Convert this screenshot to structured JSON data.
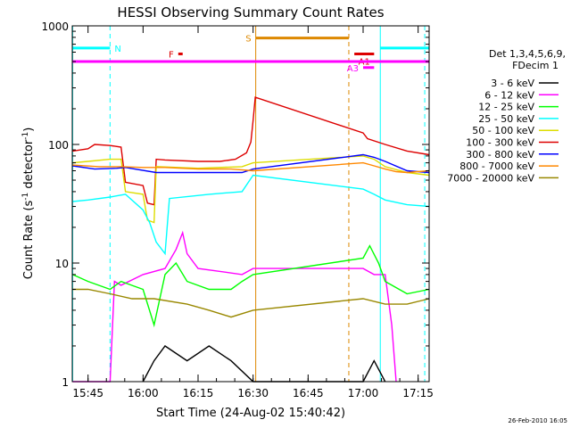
{
  "chart_data": {
    "type": "line",
    "title": "HESSI Observing Summary Count Rates",
    "xlabel": "Start Time (24-Aug-02 15:40:42)",
    "ylabel_main": "Count Rate (s",
    "ylabel_sup1": "-1",
    "ylabel_mid": " detector",
    "ylabel_sup2": "-1",
    "ylabel_end": ")",
    "xlim": [
      15.6783,
      17.3
    ],
    "ylim": [
      1,
      1000
    ],
    "yscale": "log",
    "x_ticks": [
      {
        "v": 15.75,
        "label": "15:45"
      },
      {
        "v": 16.0,
        "label": "16:00"
      },
      {
        "v": 16.25,
        "label": "16:15"
      },
      {
        "v": 16.5,
        "label": "16:30"
      },
      {
        "v": 16.75,
        "label": "16:45"
      },
      {
        "v": 17.0,
        "label": "17:00"
      },
      {
        "v": 17.25,
        "label": "17:15"
      }
    ],
    "y_ticks": [
      {
        "v": 1,
        "label": "1"
      },
      {
        "v": 10,
        "label": "10"
      },
      {
        "v": 100,
        "label": "100"
      },
      {
        "v": 1000,
        "label": "1000"
      }
    ],
    "legend": {
      "placement": "right",
      "header1": "Det 1,3,4,5,6,9,",
      "header2": "FDecim 1",
      "entries": [
        {
          "label": "3 - 6 keV",
          "color": "#000000"
        },
        {
          "label": "6 - 12 keV",
          "color": "#ff00ff"
        },
        {
          "label": "12 - 25 keV",
          "color": "#00ff00"
        },
        {
          "label": "25 - 50 keV",
          "color": "#00ffff"
        },
        {
          "label": "50 - 100 keV",
          "color": "#dddd00"
        },
        {
          "label": "100 - 300 keV",
          "color": "#dd0000"
        },
        {
          "label": "300 - 800 keV",
          "color": "#0000ff"
        },
        {
          "label": "800 - 7000 keV",
          "color": "#ff8800"
        },
        {
          "label": "7000 - 20000 keV",
          "color": "#998800"
        }
      ]
    },
    "series": [
      {
        "name": "100 - 300 keV",
        "color": "#dd0000",
        "points": [
          [
            15.68,
            88
          ],
          [
            15.75,
            92
          ],
          [
            15.78,
            100
          ],
          [
            15.85,
            98
          ],
          [
            15.9,
            95
          ],
          [
            15.92,
            48
          ],
          [
            16.0,
            45
          ],
          [
            16.02,
            32
          ],
          [
            16.05,
            31
          ],
          [
            16.06,
            75
          ],
          [
            16.1,
            74
          ],
          [
            16.25,
            72
          ],
          [
            16.35,
            72
          ],
          [
            16.42,
            75
          ],
          [
            16.47,
            85
          ],
          [
            16.49,
            105
          ],
          [
            16.5,
            160
          ],
          [
            16.51,
            250
          ],
          [
            17.0,
            125
          ],
          [
            17.02,
            112
          ],
          [
            17.1,
            100
          ],
          [
            17.2,
            88
          ],
          [
            17.3,
            82
          ]
        ]
      },
      {
        "name": "50 - 100 keV",
        "color": "#dddd00",
        "points": [
          [
            15.68,
            70
          ],
          [
            15.75,
            72
          ],
          [
            15.85,
            75
          ],
          [
            15.9,
            75
          ],
          [
            15.92,
            40
          ],
          [
            16.0,
            38
          ],
          [
            16.02,
            23
          ],
          [
            16.05,
            22
          ],
          [
            16.06,
            65
          ],
          [
            16.25,
            63
          ],
          [
            16.45,
            65
          ],
          [
            16.5,
            70
          ],
          [
            17.0,
            80
          ],
          [
            17.05,
            75
          ],
          [
            17.1,
            65
          ],
          [
            17.2,
            58
          ],
          [
            17.3,
            55
          ]
        ]
      },
      {
        "name": "300 - 800 keV",
        "color": "#0000ff",
        "points": [
          [
            15.68,
            66
          ],
          [
            15.78,
            62
          ],
          [
            15.88,
            63
          ],
          [
            15.92,
            64
          ],
          [
            16.06,
            58
          ],
          [
            16.25,
            58
          ],
          [
            16.45,
            58
          ],
          [
            16.5,
            62
          ],
          [
            17.0,
            82
          ],
          [
            17.05,
            78
          ],
          [
            17.1,
            72
          ],
          [
            17.2,
            60
          ],
          [
            17.3,
            58
          ]
        ]
      },
      {
        "name": "800 - 7000 keV",
        "color": "#ff8800",
        "points": [
          [
            15.68,
            67
          ],
          [
            15.8,
            65
          ],
          [
            15.9,
            65
          ],
          [
            16.0,
            64
          ],
          [
            16.1,
            64
          ],
          [
            16.25,
            62
          ],
          [
            16.4,
            62
          ],
          [
            16.5,
            60
          ],
          [
            17.0,
            70
          ],
          [
            17.05,
            66
          ],
          [
            17.1,
            62
          ],
          [
            17.15,
            59
          ],
          [
            17.2,
            58
          ],
          [
            17.3,
            60
          ]
        ]
      },
      {
        "name": "25 - 50 keV",
        "color": "#00ffff",
        "points": [
          [
            15.68,
            33
          ],
          [
            15.75,
            34
          ],
          [
            15.85,
            36
          ],
          [
            15.92,
            38
          ],
          [
            16.0,
            28
          ],
          [
            16.03,
            22
          ],
          [
            16.06,
            15
          ],
          [
            16.1,
            12
          ],
          [
            16.12,
            35
          ],
          [
            16.3,
            38
          ],
          [
            16.45,
            40
          ],
          [
            16.5,
            55
          ],
          [
            17.0,
            42
          ],
          [
            17.05,
            38
          ],
          [
            17.1,
            34
          ],
          [
            17.2,
            31
          ],
          [
            17.3,
            30
          ]
        ]
      },
      {
        "name": "6 - 12 keV",
        "color": "#ff00ff",
        "points": [
          [
            15.68,
            1
          ],
          [
            15.85,
            1
          ],
          [
            15.87,
            7
          ],
          [
            15.9,
            6.5
          ],
          [
            16.0,
            8
          ],
          [
            16.1,
            9
          ],
          [
            16.15,
            13
          ],
          [
            16.18,
            18
          ],
          [
            16.2,
            12
          ],
          [
            16.25,
            9
          ],
          [
            16.35,
            8.5
          ],
          [
            16.45,
            8
          ],
          [
            16.5,
            9
          ],
          [
            17.0,
            9
          ],
          [
            17.05,
            8
          ],
          [
            17.1,
            8
          ],
          [
            17.13,
            3
          ],
          [
            17.15,
            1
          ]
        ]
      },
      {
        "name": "12 - 25 keV",
        "color": "#00ff00",
        "points": [
          [
            15.68,
            8
          ],
          [
            15.75,
            7
          ],
          [
            15.85,
            6
          ],
          [
            15.9,
            7
          ],
          [
            16.0,
            6
          ],
          [
            16.05,
            3
          ],
          [
            16.1,
            8
          ],
          [
            16.15,
            10
          ],
          [
            16.2,
            7
          ],
          [
            16.3,
            6
          ],
          [
            16.4,
            6
          ],
          [
            16.45,
            7
          ],
          [
            16.5,
            8
          ],
          [
            17.0,
            11
          ],
          [
            17.03,
            14
          ],
          [
            17.07,
            10
          ],
          [
            17.1,
            7
          ],
          [
            17.2,
            5.5
          ],
          [
            17.3,
            6
          ]
        ]
      },
      {
        "name": "7000 - 20000 keV",
        "color": "#998800",
        "points": [
          [
            15.68,
            6
          ],
          [
            15.75,
            6
          ],
          [
            15.85,
            5.5
          ],
          [
            15.95,
            5
          ],
          [
            16.05,
            5
          ],
          [
            16.2,
            4.5
          ],
          [
            16.3,
            4
          ],
          [
            16.4,
            3.5
          ],
          [
            16.5,
            4
          ],
          [
            17.0,
            5
          ],
          [
            17.1,
            4.5
          ],
          [
            17.2,
            4.5
          ],
          [
            17.3,
            5
          ]
        ]
      },
      {
        "name": "3 - 6 keV",
        "color": "#000000",
        "points": [
          [
            16.0,
            1
          ],
          [
            16.05,
            1.5
          ],
          [
            16.1,
            2
          ],
          [
            16.2,
            1.5
          ],
          [
            16.3,
            2
          ],
          [
            16.4,
            1.5
          ],
          [
            16.5,
            1
          ],
          [
            17.0,
            1
          ],
          [
            17.05,
            1.5
          ],
          [
            17.1,
            1
          ]
        ]
      }
    ],
    "vertical_lines": [
      {
        "x": 15.68,
        "color": "#00ffff",
        "style": "solid"
      },
      {
        "x": 15.85,
        "color": "#00ffff",
        "style": "dashed"
      },
      {
        "x": 16.512,
        "color": "#dd8800",
        "style": "solid"
      },
      {
        "x": 16.935,
        "color": "#dd8800",
        "style": "dashed"
      },
      {
        "x": 17.078,
        "color": "#00ffff",
        "style": "solid"
      },
      {
        "x": 17.28,
        "color": "#00ffff",
        "style": "dashed"
      }
    ],
    "flag_bars": [
      {
        "label": "N",
        "x0": 15.68,
        "x1": 15.85,
        "y": 650,
        "color": "#00ffff",
        "label_side": "right"
      },
      {
        "label": "N",
        "x0": 17.078,
        "x1": 17.3,
        "y": 650,
        "color": "#00ffff",
        "label_side": "none"
      },
      {
        "label": "S",
        "x0": 16.512,
        "x1": 16.935,
        "y": 790,
        "color": "#dd8800",
        "label_side": "left"
      },
      {
        "label": "F",
        "x0": 16.16,
        "x1": 16.18,
        "y": 580,
        "color": "#dd0000",
        "label_side": "left"
      },
      {
        "label": "A1",
        "x0": 16.96,
        "x1": 17.05,
        "y": 580,
        "color": "#dd0000",
        "label_side": "below"
      },
      {
        "label": "A3",
        "x0": 17.0,
        "x1": 17.05,
        "y": 445,
        "color": "#ff00ff",
        "label_side": "left"
      },
      {
        "label": "",
        "x0": 15.68,
        "x1": 17.3,
        "y": 500,
        "color": "#ff00ff",
        "label_side": "none"
      }
    ],
    "timestamp": "26-Feb-2010 16:05"
  }
}
